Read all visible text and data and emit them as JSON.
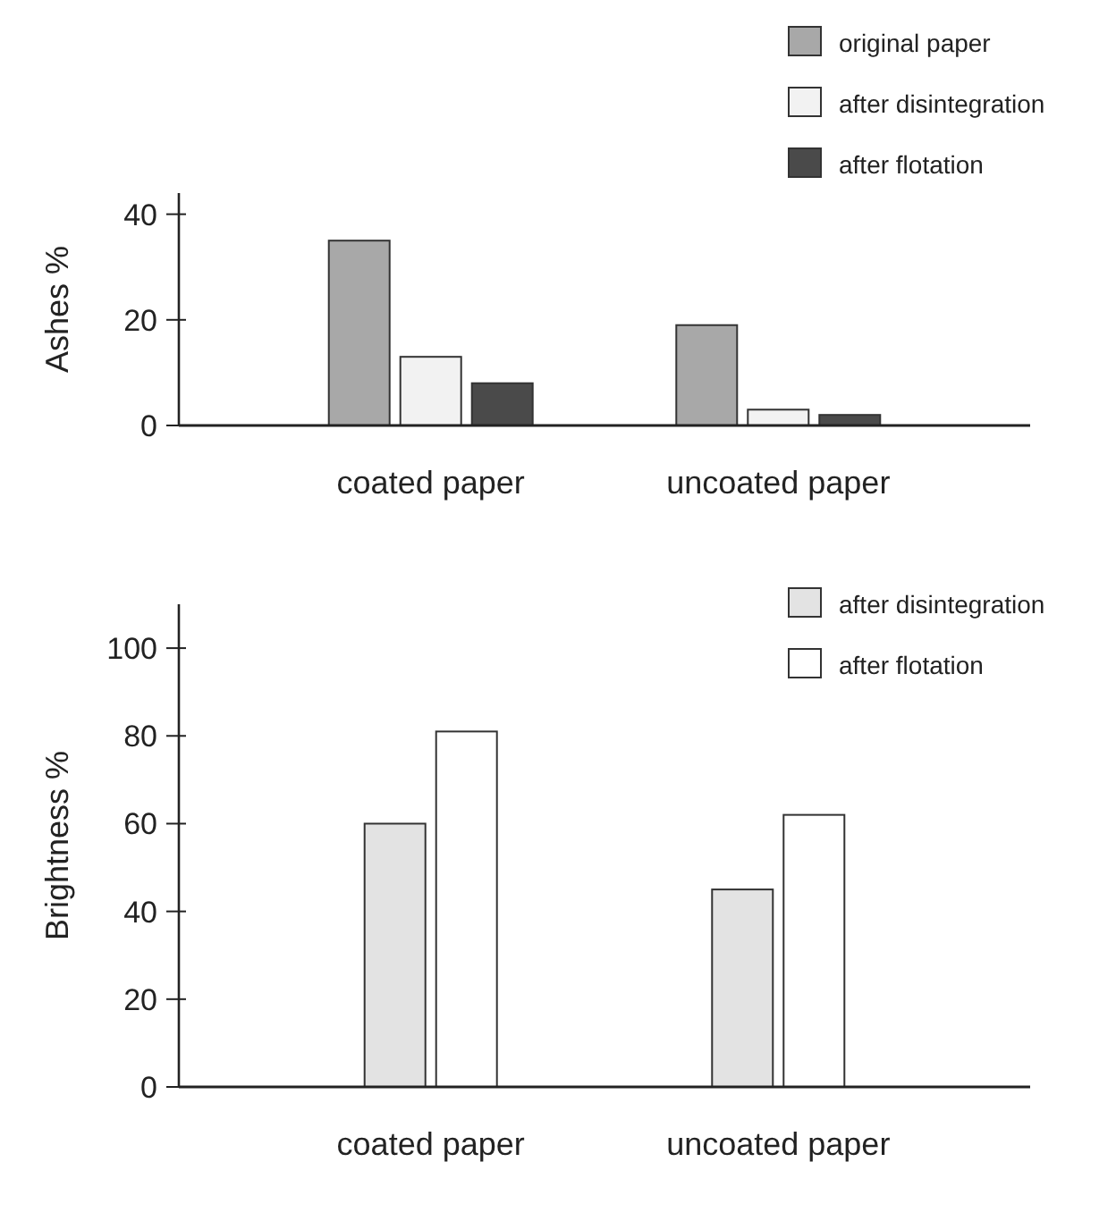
{
  "chart_data": [
    {
      "type": "bar",
      "ylabel": "Ashes %",
      "categories": [
        "coated paper",
        "uncoated paper"
      ],
      "series": [
        {
          "name": "original paper",
          "color": "#a8a8a8",
          "values": [
            35,
            19
          ]
        },
        {
          "name": "after disintegration",
          "color": "#f2f2f2",
          "values": [
            13,
            3
          ]
        },
        {
          "name": "after flotation",
          "color": "#4a4a4a",
          "values": [
            8,
            2
          ]
        }
      ],
      "ylim": [
        0,
        44
      ],
      "yticks": [
        0,
        20,
        40
      ],
      "legend": "top right"
    },
    {
      "type": "bar",
      "ylabel": "Brightness %",
      "categories": [
        "coated paper",
        "uncoated paper"
      ],
      "series": [
        {
          "name": "after disintegration",
          "color": "#e3e3e3",
          "values": [
            60,
            45
          ]
        },
        {
          "name": "after flotation",
          "color": "#ffffff",
          "values": [
            81,
            62
          ]
        }
      ],
      "ylim": [
        0,
        110
      ],
      "yticks": [
        0,
        20,
        40,
        60,
        80,
        100
      ],
      "legend": "top right"
    }
  ]
}
